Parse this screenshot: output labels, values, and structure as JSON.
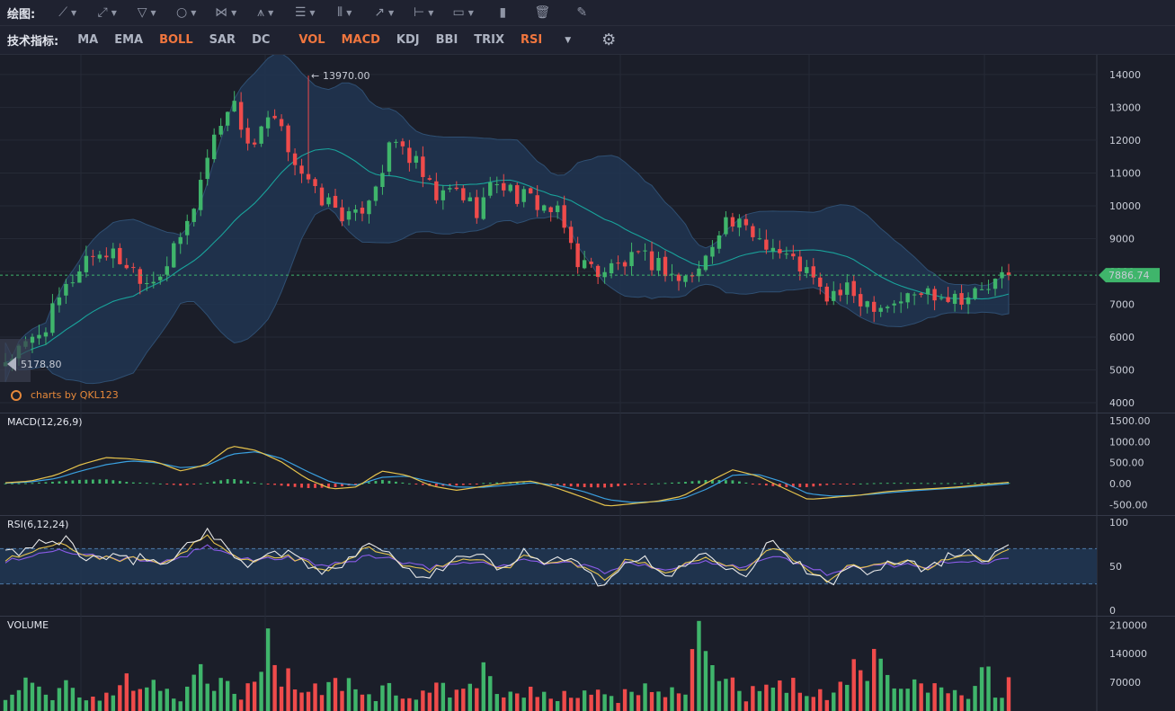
{
  "toolbar": {
    "label": "绘图:",
    "tools": [
      {
        "icon": "line-tool-icon",
        "glyph": "⟋"
      },
      {
        "icon": "ray-tool-icon",
        "glyph": "⤢"
      },
      {
        "icon": "channel-tool-icon",
        "glyph": "▽"
      },
      {
        "icon": "circle-tool-icon",
        "glyph": "○"
      },
      {
        "icon": "wave-tool-icon",
        "glyph": "⋈"
      },
      {
        "icon": "pattern-tool-icon",
        "glyph": "⩚"
      },
      {
        "icon": "fib-tool-icon",
        "glyph": "☰"
      },
      {
        "icon": "gann-tool-icon",
        "glyph": "⦀"
      },
      {
        "icon": "arrow-tool-icon",
        "glyph": "↗"
      },
      {
        "icon": "measure-tool-icon",
        "glyph": "⊢"
      },
      {
        "icon": "comment-tool-icon",
        "glyph": "▭"
      },
      {
        "icon": "chart-type-icon",
        "glyph": "▮"
      },
      {
        "icon": "trash-icon",
        "glyph": "🗑"
      },
      {
        "icon": "pen-icon",
        "glyph": "✎"
      }
    ]
  },
  "indicators": {
    "label": "技术指标:",
    "main": [
      {
        "name": "MA",
        "active": false
      },
      {
        "name": "EMA",
        "active": false
      },
      {
        "name": "BOLL",
        "active": true
      },
      {
        "name": "SAR",
        "active": false
      },
      {
        "name": "DC",
        "active": false
      }
    ],
    "sub": [
      {
        "name": "VOL",
        "active": true
      },
      {
        "name": "MACD",
        "active": true
      },
      {
        "name": "KDJ",
        "active": false
      },
      {
        "name": "BBI",
        "active": false
      },
      {
        "name": "TRIX",
        "active": false
      },
      {
        "name": "RSI",
        "active": true
      }
    ]
  },
  "watermark": "charts by QKL123",
  "colors": {
    "up": "#3fb56b",
    "down": "#ef4b4b",
    "band": "#203551",
    "bandEdge": "#2f4f72",
    "mid": "#19a39b",
    "lastPrice": "#3fb56b",
    "macdDif": "#e6c34c",
    "macdDea": "#3aa0e0",
    "rsi6": "#e8e8e8",
    "rsi12": "#e6c34c",
    "rsi24": "#8a5be8"
  },
  "chart_data": [
    {
      "type": "candlestick",
      "panel": "price",
      "yticks": [
        4000,
        5000,
        6000,
        7000,
        8000,
        9000,
        10000,
        11000,
        12000,
        13000,
        14000
      ],
      "ylim": [
        3700,
        14600
      ],
      "high_marker": {
        "label": "13970.00",
        "value": 13970
      },
      "low_marker": {
        "label": "5178.80",
        "value": 5178.8
      },
      "last_price": {
        "label": "7886.74",
        "value": 7886.74
      },
      "indicator": "BOLL",
      "close_trend": [
        5300,
        5700,
        6400,
        7500,
        8500,
        8600,
        8200,
        7700,
        8300,
        9600,
        11800,
        13300,
        11700,
        12700,
        11600,
        10400,
        10000,
        9500,
        10600,
        12000,
        11300,
        10200,
        10500,
        9900,
        10800,
        10300,
        10100,
        9700,
        8300,
        8000,
        8200,
        8400,
        8200,
        7700,
        8100,
        9600,
        9300,
        9000,
        8500,
        8100,
        7200,
        7400,
        7100,
        7000,
        7200,
        7400,
        7300,
        7250,
        7500,
        7890
      ]
    },
    {
      "type": "bar+line",
      "panel": "MACD",
      "title": "MACD(12,26,9)",
      "yticks": [
        1500,
        1000,
        500,
        0,
        -500
      ],
      "ylabels": [
        "1500.00",
        "1000.00",
        "500.00",
        "0.00",
        "-500.00"
      ],
      "ylim": [
        -750,
        1650
      ],
      "dif": [
        20,
        60,
        200,
        450,
        620,
        590,
        520,
        300,
        450,
        900,
        790,
        520,
        120,
        -130,
        -80,
        300,
        200,
        -60,
        -160,
        -70,
        20,
        60,
        -110,
        -320,
        -540,
        -480,
        -420,
        -300,
        30,
        330,
        180,
        -100,
        -380,
        -330,
        -280,
        -200,
        -150,
        -120,
        -80,
        -20,
        30
      ],
      "dea": [
        10,
        40,
        120,
        300,
        450,
        540,
        500,
        380,
        420,
        700,
        760,
        600,
        300,
        30,
        -40,
        150,
        180,
        40,
        -80,
        -90,
        -40,
        20,
        -40,
        -180,
        -380,
        -450,
        -430,
        -360,
        -120,
        200,
        220,
        40,
        -240,
        -300,
        -280,
        -230,
        -180,
        -140,
        -100,
        -50,
        0
      ]
    },
    {
      "type": "line",
      "panel": "RSI",
      "title": "RSI(6,12,24)",
      "yticks": [
        100,
        50,
        0
      ],
      "ylim": [
        0,
        100
      ],
      "overbought": 70,
      "oversold": 30,
      "rsi6": [
        62,
        70,
        75,
        82,
        58,
        60,
        55,
        62,
        50,
        74,
        92,
        68,
        54,
        62,
        66,
        52,
        40,
        58,
        80,
        66,
        46,
        40,
        54,
        62,
        58,
        44,
        70,
        52,
        58,
        42,
        28,
        62,
        54,
        38,
        56,
        64,
        52,
        44,
        78,
        66,
        40,
        28,
        50,
        46,
        56,
        58,
        46,
        60,
        70,
        58,
        80
      ],
      "rsi12": [
        58,
        64,
        70,
        76,
        60,
        60,
        57,
        60,
        52,
        68,
        84,
        66,
        56,
        60,
        62,
        54,
        44,
        56,
        72,
        64,
        48,
        44,
        54,
        58,
        56,
        46,
        64,
        54,
        56,
        46,
        34,
        58,
        54,
        42,
        54,
        60,
        52,
        46,
        70,
        64,
        44,
        34,
        50,
        48,
        54,
        56,
        48,
        58,
        64,
        56,
        70
      ],
      "rsi24": [
        56,
        60,
        64,
        68,
        62,
        60,
        58,
        58,
        54,
        62,
        72,
        64,
        58,
        58,
        60,
        56,
        50,
        54,
        62,
        60,
        52,
        48,
        52,
        54,
        54,
        50,
        58,
        54,
        54,
        50,
        42,
        54,
        52,
        46,
        52,
        56,
        52,
        50,
        60,
        58,
        48,
        42,
        48,
        48,
        52,
        52,
        50,
        54,
        56,
        54,
        60
      ]
    },
    {
      "type": "bar",
      "panel": "VOLUME",
      "title": "VOLUME",
      "yticks": [
        210000,
        140000,
        70000
      ],
      "ylim": [
        0,
        215000
      ],
      "values": [
        30,
        45,
        72,
        38,
        48,
        70,
        56,
        40,
        28,
        44,
        62,
        88,
        52,
        60,
        40,
        36,
        92,
        74,
        60,
        50,
        44,
        78,
        185,
        66,
        96,
        58,
        48,
        62,
        52,
        68,
        40,
        36,
        55,
        47,
        40,
        35,
        60,
        44,
        35,
        52,
        110,
        46,
        38,
        44,
        58,
        42,
        36,
        40,
        50,
        60,
        36,
        32,
        40,
        58,
        64,
        38,
        44,
        70,
        180,
        92,
        54,
        62,
        40,
        44,
        46,
        60,
        56,
        50,
        36,
        46,
        52,
        98,
        88,
        120,
        70,
        56,
        60,
        46,
        50,
        62,
        34,
        48,
        92,
        50,
        66
      ]
    }
  ]
}
